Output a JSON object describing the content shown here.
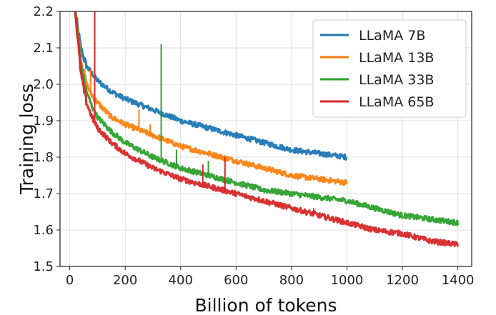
{
  "chart_data": {
    "type": "line",
    "xlabel": "Billion of tokens",
    "ylabel": "Training loss",
    "xlim": [
      -35,
      1450
    ],
    "ylim": [
      1.5,
      2.2
    ],
    "xticks": [
      0,
      200,
      400,
      600,
      800,
      1000,
      1200,
      1400
    ],
    "xtick_labels": [
      "0",
      "200",
      "400",
      "600",
      "800",
      "1000",
      "1200",
      "1400"
    ],
    "yticks": [
      1.5,
      1.6,
      1.7,
      1.8,
      1.9,
      2.0,
      2.1,
      2.2
    ],
    "ytick_labels": [
      "1.5",
      "1.6",
      "1.7",
      "1.8",
      "1.9",
      "2.0",
      "2.1",
      "2.2"
    ],
    "grid": true,
    "legend_position": "top-right",
    "series": [
      {
        "name": "LLaMA 7B",
        "color": "#1f77b4",
        "points": [
          [
            20,
            2.2
          ],
          [
            40,
            2.1
          ],
          [
            60,
            2.05
          ],
          [
            80,
            2.03
          ],
          [
            100,
            2.01
          ],
          [
            150,
            1.98
          ],
          [
            200,
            1.96
          ],
          [
            300,
            1.93
          ],
          [
            400,
            1.9
          ],
          [
            500,
            1.88
          ],
          [
            600,
            1.86
          ],
          [
            700,
            1.84
          ],
          [
            800,
            1.82
          ],
          [
            900,
            1.81
          ],
          [
            1000,
            1.8
          ]
        ],
        "spikes": []
      },
      {
        "name": "LLaMA 13B",
        "color": "#ff7f0e",
        "points": [
          [
            20,
            2.2
          ],
          [
            40,
            2.07
          ],
          [
            60,
            2.0
          ],
          [
            80,
            1.97
          ],
          [
            100,
            1.95
          ],
          [
            150,
            1.91
          ],
          [
            200,
            1.89
          ],
          [
            300,
            1.86
          ],
          [
            400,
            1.83
          ],
          [
            500,
            1.81
          ],
          [
            600,
            1.79
          ],
          [
            700,
            1.77
          ],
          [
            800,
            1.75
          ],
          [
            900,
            1.74
          ],
          [
            1000,
            1.73
          ]
        ],
        "spikes": [
          [
            75,
            2.04
          ],
          [
            250,
            1.93
          ],
          [
            290,
            1.89
          ]
        ]
      },
      {
        "name": "LLaMA 33B",
        "color": "#2ca02c",
        "points": [
          [
            20,
            2.2
          ],
          [
            40,
            2.05
          ],
          [
            60,
            1.98
          ],
          [
            80,
            1.94
          ],
          [
            100,
            1.91
          ],
          [
            150,
            1.87
          ],
          [
            200,
            1.84
          ],
          [
            300,
            1.8
          ],
          [
            400,
            1.77
          ],
          [
            500,
            1.75
          ],
          [
            600,
            1.73
          ],
          [
            700,
            1.71
          ],
          [
            800,
            1.7
          ],
          [
            900,
            1.69
          ],
          [
            1000,
            1.68
          ],
          [
            1100,
            1.66
          ],
          [
            1200,
            1.64
          ],
          [
            1300,
            1.63
          ],
          [
            1400,
            1.62
          ]
        ],
        "spikes": [
          [
            330,
            2.11
          ],
          [
            385,
            1.82
          ],
          [
            500,
            1.79
          ]
        ]
      },
      {
        "name": "LLaMA 65B",
        "color": "#d62728",
        "points": [
          [
            20,
            2.2
          ],
          [
            40,
            2.03
          ],
          [
            60,
            1.95
          ],
          [
            80,
            1.91
          ],
          [
            100,
            1.88
          ],
          [
            150,
            1.84
          ],
          [
            200,
            1.81
          ],
          [
            300,
            1.77
          ],
          [
            400,
            1.74
          ],
          [
            500,
            1.72
          ],
          [
            600,
            1.7
          ],
          [
            700,
            1.68
          ],
          [
            800,
            1.66
          ],
          [
            900,
            1.64
          ],
          [
            1000,
            1.62
          ],
          [
            1100,
            1.6
          ],
          [
            1200,
            1.59
          ],
          [
            1300,
            1.57
          ],
          [
            1400,
            1.56
          ]
        ],
        "spikes": [
          [
            90,
            2.2
          ],
          [
            235,
            1.8
          ],
          [
            480,
            1.78
          ],
          [
            560,
            1.8
          ],
          [
            880,
            1.66
          ]
        ]
      }
    ]
  }
}
